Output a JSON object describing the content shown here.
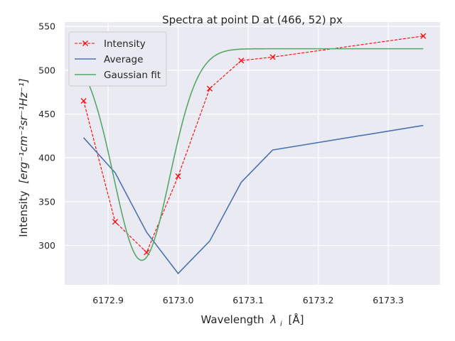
{
  "chart_data": {
    "type": "line",
    "title": "Spectra at point D at (466, 52) px",
    "xlabel": "Wavelength",
    "xlabel_symbol": "λ",
    "xlabel_subscript": "i",
    "xlabel_unit": "[Å]",
    "ylabel": "Intensity",
    "ylabel_unit": "[erg⁻¹cm⁻²sr⁻¹Hz⁻¹]",
    "xlim": [
      6172.838,
      6173.374
    ],
    "ylim": [
      255,
      555
    ],
    "xticks": [
      6172.9,
      6173.0,
      6173.1,
      6173.2,
      6173.3
    ],
    "xtick_labels": [
      "6172.9",
      "6173.0",
      "6173.1",
      "6173.2",
      "6173.3"
    ],
    "yticks": [
      300,
      350,
      400,
      450,
      500,
      550
    ],
    "ytick_labels": [
      "300",
      "350",
      "400",
      "450",
      "500",
      "550"
    ],
    "grid": true,
    "legend_position": "top-left",
    "series": [
      {
        "name": "Intensity",
        "style": "dashed-marker-x",
        "color": "#ff0000",
        "x": [
          6172.865,
          6172.91,
          6172.955,
          6173.0,
          6173.045,
          6173.09,
          6173.135,
          6173.35
        ],
        "y": [
          465,
          327,
          292,
          379,
          479,
          511,
          515,
          539
        ]
      },
      {
        "name": "Average",
        "style": "solid",
        "color": "#4c72b0",
        "x": [
          6172.865,
          6172.91,
          6172.955,
          6173.0,
          6173.045,
          6173.09,
          6173.135,
          6173.35
        ],
        "y": [
          423,
          383,
          315,
          268,
          305,
          372,
          409,
          437
        ]
      },
      {
        "name": "Gaussian fit",
        "style": "solid",
        "color": "#55a868",
        "model": {
          "type": "gaussian_absorption",
          "continuum": 524.5,
          "depth": 241.5,
          "center": 6172.948,
          "sigma": 0.04,
          "x_range": [
            6172.865,
            6173.35
          ]
        }
      }
    ]
  }
}
